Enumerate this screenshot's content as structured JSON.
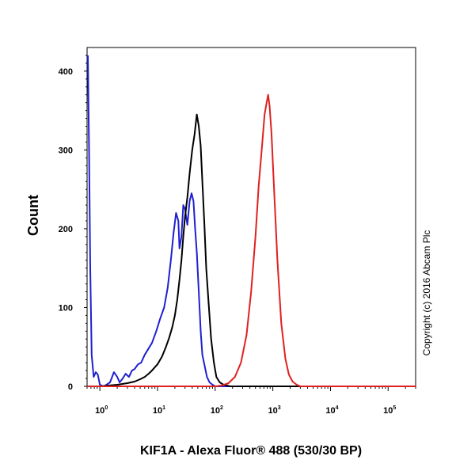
{
  "chart_data": {
    "type": "line",
    "xlabel": "KIF1A - Alexa Fluor® 488 (530/30 BP)",
    "ylabel": "Count",
    "x_scale": "log",
    "xlim": [
      0.6,
      300000
    ],
    "ylim": [
      0,
      430
    ],
    "x_ticks": [
      {
        "base": "10",
        "exp": "0",
        "value": 1
      },
      {
        "base": "10",
        "exp": "1",
        "value": 10
      },
      {
        "base": "10",
        "exp": "2",
        "value": 100
      },
      {
        "base": "10",
        "exp": "3",
        "value": 1000
      },
      {
        "base": "10",
        "exp": "4",
        "value": 10000
      },
      {
        "base": "10",
        "exp": "5",
        "value": 100000
      }
    ],
    "y_ticks": [
      "0",
      "100",
      "200",
      "300",
      "400"
    ],
    "grid": false,
    "copyright": "Copyright (c) 2016 Abcam Plc",
    "series": [
      {
        "color": "#2020d0",
        "x": [
          0.62,
          0.65,
          0.68,
          0.72,
          0.78,
          0.85,
          0.92,
          1.0,
          1.15,
          1.3,
          1.5,
          1.75,
          2.0,
          2.2,
          2.5,
          2.8,
          3.2,
          3.6,
          4.0,
          4.6,
          5.2,
          6.0,
          7.0,
          8.0,
          9.5,
          11,
          13,
          15,
          17,
          19,
          21,
          23,
          24,
          26,
          28,
          30,
          33,
          36,
          39,
          42,
          45,
          48,
          52,
          56,
          60,
          66,
          72,
          80,
          90,
          100,
          120,
          150,
          200,
          500,
          2000,
          10000,
          300000
        ],
        "y": [
          420,
          300,
          150,
          40,
          12,
          18,
          15,
          2,
          0,
          2,
          5,
          18,
          12,
          5,
          10,
          16,
          12,
          20,
          22,
          28,
          30,
          40,
          48,
          55,
          70,
          85,
          100,
          125,
          160,
          195,
          220,
          210,
          175,
          190,
          230,
          225,
          205,
          235,
          245,
          235,
          200,
          170,
          120,
          70,
          40,
          25,
          12,
          5,
          2,
          0,
          0,
          0,
          0,
          0,
          0,
          0,
          0
        ]
      },
      {
        "color": "#000000",
        "x": [
          0.6,
          1,
          2,
          3,
          4,
          5,
          6,
          7,
          8,
          10,
          12,
          14,
          16,
          18,
          20,
          22,
          24,
          26,
          28,
          30,
          33,
          36,
          40,
          44,
          48,
          52,
          56,
          60,
          65,
          70,
          78,
          85,
          95,
          105,
          120,
          140,
          160,
          180,
          200,
          300,
          1000,
          10000,
          300000
        ],
        "y": [
          0,
          0,
          2,
          4,
          6,
          9,
          12,
          16,
          20,
          28,
          38,
          50,
          62,
          75,
          90,
          110,
          135,
          160,
          190,
          215,
          240,
          270,
          300,
          320,
          345,
          330,
          305,
          260,
          205,
          150,
          100,
          60,
          30,
          12,
          5,
          2,
          1,
          0,
          0,
          0,
          0,
          0,
          0
        ]
      },
      {
        "color": "#e02020",
        "x": [
          0.6,
          10,
          50,
          100,
          130,
          170,
          220,
          280,
          350,
          420,
          500,
          570,
          650,
          720,
          780,
          830,
          880,
          950,
          1050,
          1200,
          1400,
          1650,
          1900,
          2200,
          2600,
          3000,
          4000,
          10000,
          300000
        ],
        "y": [
          0,
          0,
          0,
          0,
          1,
          4,
          12,
          30,
          65,
          120,
          190,
          255,
          305,
          345,
          360,
          370,
          355,
          320,
          250,
          160,
          80,
          35,
          15,
          6,
          2,
          0,
          0,
          0,
          0
        ]
      }
    ]
  }
}
